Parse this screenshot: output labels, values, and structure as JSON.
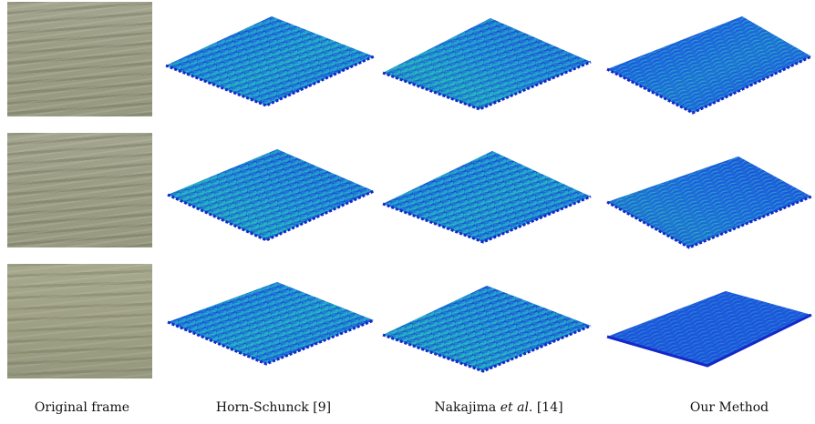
{
  "rows": 3,
  "columns": [
    {
      "id": "original",
      "type": "image"
    },
    {
      "id": "horn-schunck",
      "type": "surface-plot"
    },
    {
      "id": "nakajima",
      "type": "surface-plot"
    },
    {
      "id": "ours",
      "type": "surface-plot"
    }
  ],
  "captions": {
    "original": "Original frame",
    "horn": "Horn-Schunck [9]",
    "nakajima_prefix": "Nakajima ",
    "nakajima_italic": "et al.",
    "nakajima_suffix": " [14]",
    "ours": "Our Method"
  },
  "colors": {
    "surface_dark": "#1a2fd6",
    "surface_mid": "#1f6fe0",
    "surface_light": "#22c7b0",
    "water": "#9c9e85"
  }
}
